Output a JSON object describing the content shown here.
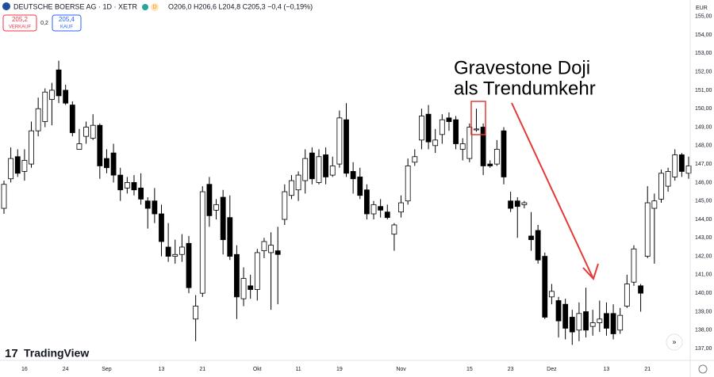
{
  "header": {
    "symbol": "DEUTSCHE BOERSE AG · 1D · XETR",
    "badge": "D",
    "ohlc": "O206,0 H206,6 L204,8 C205,3 −0,4 (−0,19%)",
    "sell_price": "205,2",
    "sell_label": "VERKAUF",
    "spread": "0,2",
    "buy_price": "205,4",
    "buy_label": "KAUF",
    "currency": "EUR",
    "brand": "TradingView"
  },
  "chart_data": {
    "type": "candlestick",
    "annotation": [
      "Gravestone Doji",
      "als Trendumkehr"
    ],
    "up_color": "#ffffff",
    "down_color": "#000000",
    "wick_color": "#000000",
    "grid": false,
    "categories": [
      null,
      null,
      null,
      "16",
      null,
      null,
      null,
      null,
      null,
      "24",
      null,
      null,
      null,
      null,
      null,
      "Sep",
      null,
      null,
      null,
      null,
      null,
      null,
      null,
      "13",
      null,
      null,
      null,
      null,
      null,
      "21",
      null,
      null,
      null,
      null,
      null,
      null,
      null,
      "Okt",
      null,
      null,
      null,
      null,
      null,
      "11",
      null,
      null,
      null,
      null,
      null,
      "19",
      null,
      null,
      null,
      null,
      null,
      null,
      null,
      null,
      "Nov",
      null,
      null,
      null,
      null,
      null,
      null,
      null,
      null,
      null,
      "15",
      null,
      null,
      null,
      null,
      null,
      "23",
      null,
      null,
      null,
      null,
      null,
      "Dez",
      null,
      null,
      null,
      null,
      null,
      null,
      null,
      "13",
      null,
      null,
      null,
      null,
      null,
      "21",
      null,
      null,
      null,
      null,
      null,
      null
    ],
    "open": [
      144.6,
      146.2,
      147.4,
      146.6,
      147.0,
      148.8,
      149.3,
      150.5,
      152.1,
      151.0,
      150.2,
      147.8,
      148.5,
      148.4,
      149.1,
      147.3,
      147.6,
      146.4,
      145.7,
      146.0,
      145.7,
      145.0,
      145.0,
      144.3,
      142.5,
      142.0,
      142.1,
      142.7,
      138.6,
      140.0,
      145.9,
      144.5,
      145.2,
      144.1,
      142.1,
      139.7,
      140.4,
      140.2,
      142.3,
      142.2,
      142.3,
      144.0,
      145.3,
      145.6,
      146.1,
      147.6,
      146.0,
      147.5,
      146.4,
      147.0,
      149.4,
      146.6,
      146.3,
      145.6,
      144.3,
      144.7,
      144.4,
      143.2,
      144.4,
      145.0,
      147.1,
      148.3,
      149.7,
      148.0,
      148.6,
      149.5,
      149.4,
      147.8,
      147.3,
      148.85,
      149.0,
      147.0,
      147.0,
      148.8,
      145.0,
      145.0,
      144.8,
      143.1,
      143.4,
      142.0,
      139.8,
      139.6,
      139.4,
      138.7,
      138.0,
      139.0,
      138.2,
      138.4,
      138.9,
      138.9,
      138.0,
      139.3,
      140.6,
      140.4,
      142.0,
      144.6,
      145.1,
      145.8,
      146.3,
      147.5,
      146.5
    ],
    "high": [
      146.1,
      147.9,
      147.8,
      147.8,
      149.3,
      150.6,
      151.1,
      151.4,
      152.6,
      151.3,
      150.4,
      148.9,
      149.3,
      149.7,
      149.2,
      147.8,
      148.1,
      146.8,
      146.3,
      146.4,
      146.5,
      145.2,
      145.7,
      144.8,
      143.8,
      142.9,
      143.2,
      143.1,
      139.9,
      145.8,
      146.3,
      145.1,
      145.6,
      145.3,
      142.6,
      141.4,
      141.0,
      142.4,
      143.0,
      143.3,
      143.6,
      145.9,
      146.4,
      146.6,
      147.8,
      147.9,
      147.8,
      147.9,
      147.4,
      149.9,
      150.3,
      147.1,
      146.8,
      145.9,
      145.0,
      145.1,
      144.8,
      143.8,
      145.3,
      147.3,
      147.8,
      150.0,
      150.2,
      148.9,
      149.7,
      149.8,
      149.6,
      148.4,
      149.2,
      150.0,
      149.2,
      147.2,
      148.3,
      149.0,
      145.5,
      145.2,
      145.0,
      144.4,
      143.7,
      142.2,
      140.5,
      139.8,
      139.7,
      139.1,
      139.5,
      140.3,
      139.1,
      139.6,
      139.5,
      139.4,
      139.2,
      141.0,
      142.6,
      140.5,
      145.8,
      145.4,
      146.7,
      146.8,
      147.8,
      147.6,
      147.4
    ],
    "low": [
      144.3,
      146.0,
      146.3,
      146.1,
      146.8,
      148.5,
      149.0,
      149.1,
      150.3,
      150.2,
      148.5,
      147.8,
      148.1,
      148.3,
      146.2,
      146.5,
      146.0,
      145.0,
      145.4,
      145.3,
      144.8,
      143.5,
      143.8,
      142.0,
      141.7,
      141.6,
      141.7,
      140.0,
      137.4,
      139.8,
      143.6,
      144.0,
      142.1,
      141.8,
      138.6,
      139.3,
      139.7,
      139.6,
      141.9,
      139.1,
      139.4,
      143.7,
      145.1,
      145.0,
      145.4,
      145.9,
      145.9,
      145.9,
      146.3,
      146.8,
      146.3,
      145.4,
      145.1,
      144.0,
      144.0,
      144.1,
      144.0,
      142.3,
      144.1,
      144.8,
      146.9,
      147.8,
      147.8,
      147.6,
      148.1,
      148.8,
      147.8,
      147.2,
      147.1,
      148.75,
      146.4,
      146.8,
      146.9,
      145.9,
      144.4,
      143.0,
      144.6,
      142.3,
      141.6,
      138.6,
      139.4,
      137.6,
      137.5,
      137.2,
      137.4,
      137.6,
      137.7,
      137.9,
      137.7,
      137.5,
      137.8,
      139.2,
      140.4,
      139.0,
      141.9,
      141.6,
      144.9,
      145.5,
      146.1,
      146.3,
      146.2
    ],
    "close": [
      145.9,
      147.3,
      146.5,
      147.2,
      148.8,
      150.0,
      150.9,
      151.0,
      150.7,
      150.3,
      148.7,
      148.1,
      149.0,
      149.1,
      146.9,
      146.8,
      146.4,
      145.6,
      146.0,
      145.6,
      145.1,
      144.6,
      144.3,
      142.8,
      142.0,
      142.1,
      142.5,
      140.3,
      139.3,
      145.5,
      144.2,
      144.8,
      142.9,
      142.0,
      139.8,
      140.8,
      140.2,
      142.2,
      142.8,
      142.6,
      142.1,
      145.5,
      146.1,
      146.4,
      147.3,
      146.2,
      147.4,
      146.3,
      146.9,
      149.5,
      146.5,
      146.2,
      145.3,
      144.3,
      144.8,
      144.5,
      144.1,
      143.7,
      144.9,
      146.9,
      147.4,
      149.6,
      148.2,
      148.3,
      149.4,
      149.3,
      148.1,
      148.1,
      149.0,
      148.9,
      146.9,
      146.9,
      147.8,
      146.3,
      144.6,
      144.7,
      144.9,
      142.9,
      141.8,
      138.7,
      140.1,
      138.5,
      138.1,
      137.9,
      138.9,
      138.0,
      138.4,
      138.6,
      138.1,
      137.8,
      138.8,
      140.5,
      142.4,
      140.0,
      144.9,
      145.0,
      146.5,
      146.6,
      147.5,
      146.6,
      146.9
    ],
    "ylim": [
      136.36,
      155.89
    ],
    "yticks": [
      {
        "value": 137,
        "label": "137,00"
      },
      {
        "value": 138,
        "label": "138,00"
      },
      {
        "value": 139,
        "label": "139,00"
      },
      {
        "value": 140,
        "label": "140,00"
      },
      {
        "value": 141,
        "label": "141,00"
      },
      {
        "value": 142,
        "label": "142,00"
      },
      {
        "value": 143,
        "label": "143,00"
      },
      {
        "value": 144,
        "label": "144,00"
      },
      {
        "value": 145,
        "label": "145,00"
      },
      {
        "value": 146,
        "label": "146,00"
      },
      {
        "value": 147,
        "label": "147,00"
      },
      {
        "value": 148,
        "label": "148,00"
      },
      {
        "value": 149,
        "label": "149,00"
      },
      {
        "value": 150,
        "label": "150,00"
      },
      {
        "value": 151,
        "label": "151,00"
      },
      {
        "value": 152,
        "label": "152,00"
      },
      {
        "value": 153,
        "label": "153,00"
      },
      {
        "value": 154,
        "label": "154,00"
      },
      {
        "value": 155,
        "label": "155,00"
      }
    ]
  }
}
